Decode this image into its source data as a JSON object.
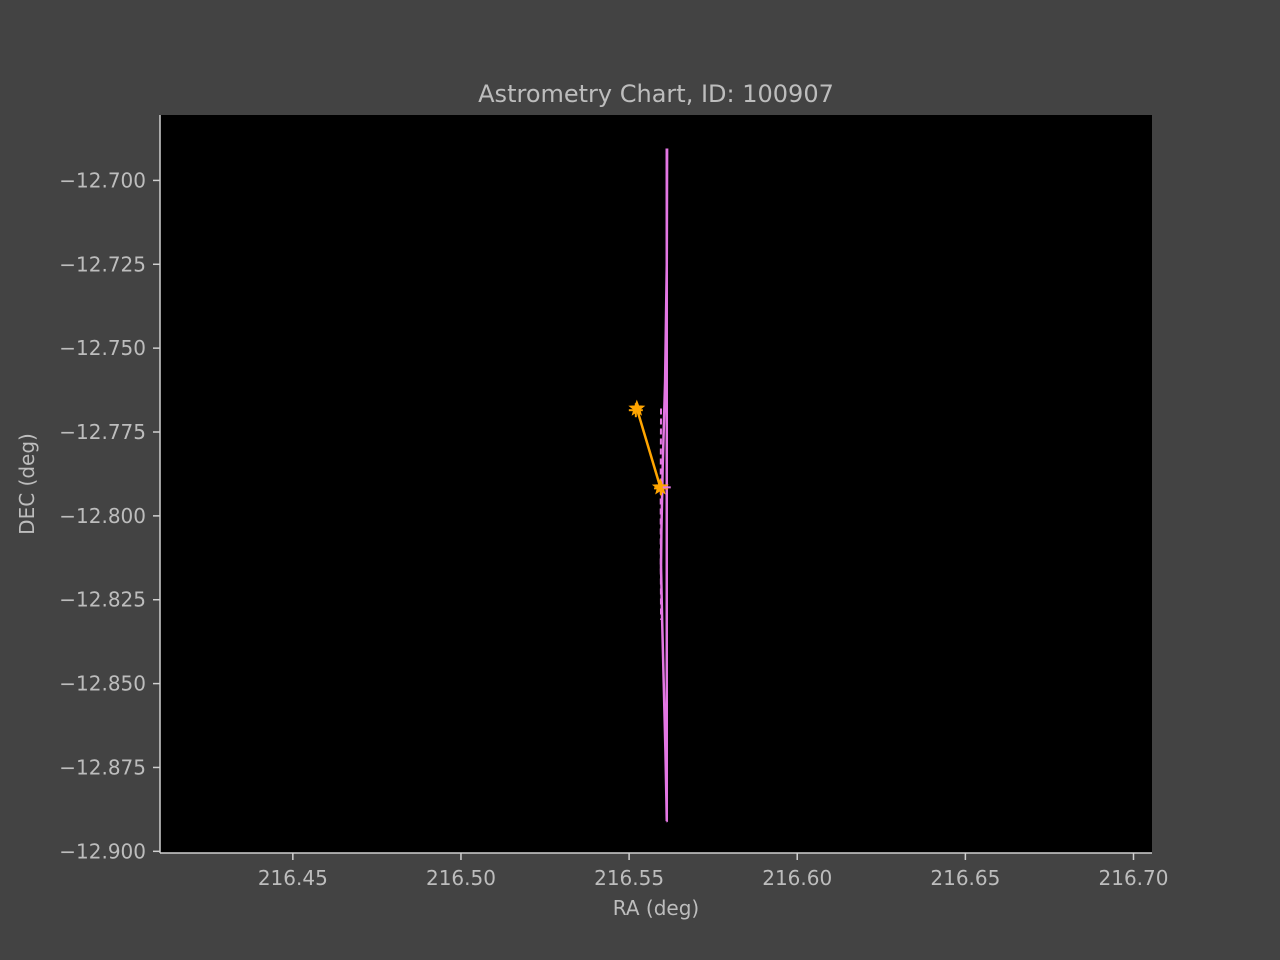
{
  "chart_data": {
    "type": "line",
    "title": "Astrometry Chart, ID: 100907",
    "xlabel": "RA (deg)",
    "ylabel": "DEC (deg)",
    "xlim": [
      216.4105,
      216.7055
    ],
    "ylim": [
      -12.9005,
      -12.6805
    ],
    "xticks": [
      216.45,
      216.5,
      216.55,
      216.6,
      216.65,
      216.7
    ],
    "xtick_labels": [
      "216.45",
      "216.50",
      "216.55",
      "216.60",
      "216.65",
      "216.70"
    ],
    "yticks": [
      -12.7,
      -12.725,
      -12.75,
      -12.775,
      -12.8,
      -12.825,
      -12.85,
      -12.875,
      -12.9
    ],
    "ytick_labels": [
      "−12.700",
      "−12.725",
      "−12.750",
      "−12.775",
      "−12.800",
      "−12.825",
      "−12.850",
      "−12.875",
      "−12.900"
    ],
    "grid": false,
    "colors": {
      "figure_background": "#434343",
      "plot_background": "#000000",
      "text": "#bdbdbd",
      "spine": "#d0d0d0",
      "orbit": "#e377e3",
      "motion": "#ffa500"
    },
    "series": [
      {
        "style": "solid",
        "color": "#e377e3",
        "x": [
          216.5613,
          216.5612,
          216.5607,
          216.56,
          216.5596,
          216.5595,
          216.5598,
          216.5603,
          216.5608,
          216.5611,
          216.5612,
          216.5611
        ],
        "y": [
          -12.6905,
          -12.725,
          -12.76,
          -12.785,
          -12.805,
          -12.815,
          -12.83,
          -12.85,
          -12.87,
          -12.885,
          -12.891,
          -12.891
        ]
      },
      {
        "style": "solid",
        "color": "#e377e3",
        "x": [
          216.5612,
          216.5612,
          216.5612,
          216.5612,
          216.5612
        ],
        "y": [
          -12.6905,
          -12.75,
          -12.8,
          -12.85,
          -12.891
        ]
      },
      {
        "style": "dashed",
        "color": "#e377e3",
        "x": [
          216.5595,
          216.5594,
          216.5594,
          216.5595
        ],
        "y": [
          -12.768,
          -12.79,
          -12.81,
          -12.831
        ]
      },
      {
        "style": "solid",
        "color": "#ffa500",
        "marker": "star",
        "x": [
          216.5523,
          216.5593
        ],
        "y": [
          -12.768,
          -12.7915
        ]
      }
    ],
    "markers": [
      {
        "marker": "plus",
        "color": "#ffa500",
        "x": 216.552,
        "y": -12.7685
      },
      {
        "marker": "plus",
        "color": "#ffa500",
        "x": 216.5595,
        "y": -12.7918
      },
      {
        "marker": "tick",
        "color": "#e377e3",
        "x": 216.5612,
        "y": -12.7915
      }
    ]
  }
}
